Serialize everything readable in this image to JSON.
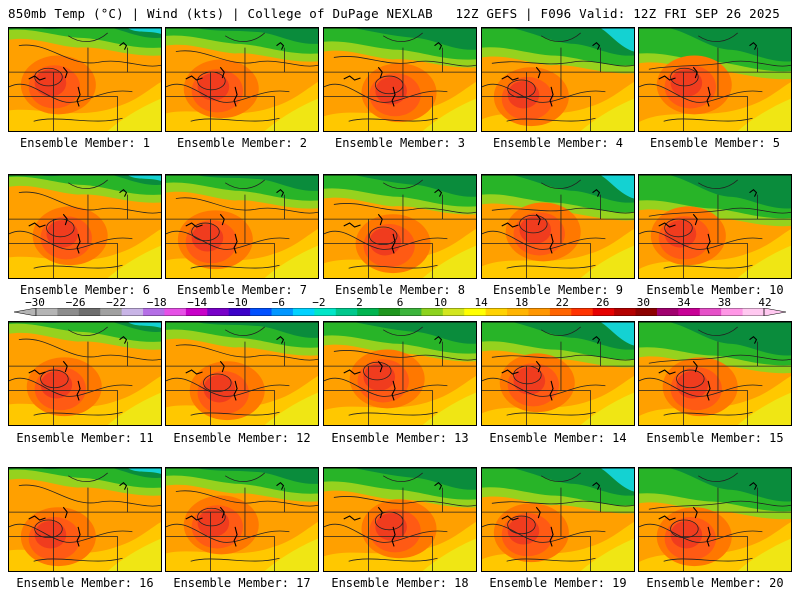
{
  "header": {
    "left": "850mb Temp (°C) | Wind (kts) | College of DuPage NEXLAB",
    "right": "12Z GEFS | F096 Valid: 12Z FRI SEP 26 2025"
  },
  "caption_prefix": "Ensemble Member: ",
  "members": [
    "1",
    "2",
    "3",
    "4",
    "5",
    "6",
    "7",
    "8",
    "9",
    "10",
    "11",
    "12",
    "13",
    "14",
    "15",
    "16",
    "17",
    "18",
    "19",
    "20"
  ],
  "colorbar": {
    "labels": [
      "−30",
      "−26",
      "−22",
      "−18",
      "−14",
      "−10",
      "−6",
      "−2",
      "2",
      "6",
      "10",
      "14",
      "18",
      "22",
      "26",
      "30",
      "34",
      "38",
      "42"
    ],
    "colors": [
      "#b4b4b4",
      "#8c8c8c",
      "#6e6e6e",
      "#a0a0a0",
      "#c8b4e6",
      "#b46ee6",
      "#e650e6",
      "#c800c8",
      "#7800c8",
      "#3c00c8",
      "#0050ff",
      "#0096ff",
      "#00d2ff",
      "#00e6c8",
      "#00c88c",
      "#00b450",
      "#1e961e",
      "#3cb43c",
      "#8cd21e",
      "#d2e61e",
      "#ffff00",
      "#ffd200",
      "#ffb400",
      "#ff9600",
      "#ff6400",
      "#ff3200",
      "#e60000",
      "#b40000",
      "#8c0000",
      "#a0006e",
      "#c80096",
      "#e650c8",
      "#ff96e6",
      "#ffc8f0"
    ]
  },
  "map_colors": {
    "green_dark": "#0a8c3c",
    "green": "#28b428",
    "yellow_green": "#96d21e",
    "yellow": "#f0e614",
    "gold": "#ffc800",
    "orange": "#ffa000",
    "orange_red": "#ff7800",
    "red_orange": "#ff5a14",
    "red": "#f03c1e",
    "cyan": "#14d2d2"
  }
}
